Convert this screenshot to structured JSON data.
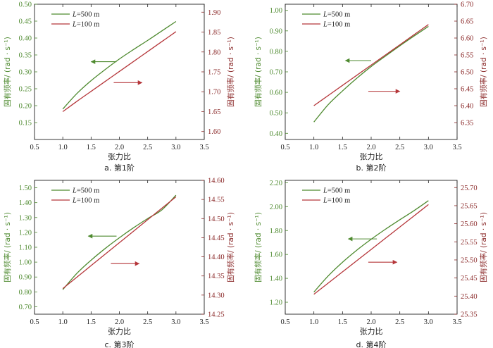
{
  "colors": {
    "green": "#4e8a2f",
    "red": "#b5363a",
    "right_axis": "#8b2a2a",
    "axis": "#222222"
  },
  "chart_data": [
    {
      "type": "line",
      "caption": "a. 第1阶",
      "xlabel": "张力比",
      "ylabel_left": "固有频率/ (rad · s⁻¹)",
      "ylabel_right": "固有频率/ (rad · s⁻¹)",
      "xlim": [
        0.5,
        3.5
      ],
      "xticks": [
        "0.5",
        "1.0",
        "1.5",
        "2.0",
        "2.5",
        "3.0",
        "3.5"
      ],
      "ylim_left": [
        0.1,
        0.5
      ],
      "yticks_left": [
        "0.15",
        "0.20",
        "0.25",
        "0.30",
        "0.35",
        "0.40",
        "0.45",
        "0.50"
      ],
      "ylim_right": [
        1.58,
        1.92
      ],
      "yticks_right": [
        "1.60",
        "1.65",
        "1.70",
        "1.75",
        "1.80",
        "1.85",
        "1.90"
      ],
      "legend": [
        {
          "italic": "L",
          "text": "=500 m"
        },
        {
          "italic": "L",
          "text": "=100 m"
        }
      ],
      "series": [
        {
          "name": "L=500 m",
          "axis": "left",
          "x": [
            1.0,
            1.25,
            1.5,
            1.75,
            2.0,
            2.25,
            2.5,
            2.75,
            3.0
          ],
          "y": [
            0.19,
            0.236,
            0.274,
            0.307,
            0.338,
            0.366,
            0.393,
            0.421,
            0.449
          ]
        },
        {
          "name": "L=100 m",
          "axis": "right",
          "x": [
            1.0,
            1.25,
            1.5,
            1.75,
            2.0,
            2.25,
            2.5,
            2.75,
            3.0
          ],
          "y": [
            1.65,
            1.676,
            1.701,
            1.726,
            1.751,
            1.776,
            1.801,
            1.826,
            1.851
          ]
        }
      ],
      "arrows": [
        {
          "direction": "left",
          "from": [
            1.95,
            0.33
          ],
          "to": [
            1.5,
            0.33
          ]
        },
        {
          "direction": "right",
          "from": [
            1.9,
            0.268
          ],
          "to": [
            2.4,
            0.268
          ]
        }
      ]
    },
    {
      "type": "line",
      "caption": "b. 第2阶",
      "xlabel": "张力比",
      "ylabel_left": "固有频率/ (rad · s⁻¹)",
      "ylabel_right": "固有频率/ (rad · s⁻¹)",
      "xlim": [
        0.5,
        3.5
      ],
      "xticks": [
        "0.5",
        "1.0",
        "1.5",
        "2.0",
        "2.5",
        "3.0",
        "3.5"
      ],
      "ylim_left": [
        0.37,
        1.03
      ],
      "yticks_left": [
        "0.40",
        "0.50",
        "0.60",
        "0.70",
        "0.80",
        "0.90",
        "1.00"
      ],
      "ylim_right": [
        6.3,
        6.7
      ],
      "yticks_right": [
        "6.35",
        "6.40",
        "6.45",
        "6.50",
        "6.55",
        "6.60",
        "6.65",
        "6.70"
      ],
      "legend": [
        {
          "italic": "L",
          "text": "=500 m"
        },
        {
          "italic": "L",
          "text": "=100 m"
        }
      ],
      "series": [
        {
          "name": "L=500 m",
          "axis": "left",
          "x": [
            1.0,
            1.25,
            1.5,
            1.75,
            2.0,
            2.25,
            2.5,
            2.75,
            3.0
          ],
          "y": [
            0.455,
            0.54,
            0.607,
            0.669,
            0.726,
            0.777,
            0.827,
            0.875,
            0.922
          ]
        },
        {
          "name": "L=100 m",
          "axis": "right",
          "x": [
            1.0,
            1.25,
            1.5,
            1.75,
            2.0,
            2.25,
            2.5,
            2.75,
            3.0
          ],
          "y": [
            6.4,
            6.43,
            6.46,
            6.49,
            6.52,
            6.55,
            6.58,
            6.61,
            6.64
          ]
        }
      ],
      "arrows": [
        {
          "direction": "left",
          "from": [
            2.0,
            0.755
          ],
          "to": [
            1.55,
            0.755
          ]
        },
        {
          "direction": "right",
          "from": [
            1.95,
            0.605
          ],
          "to": [
            2.5,
            0.605
          ]
        }
      ]
    },
    {
      "type": "line",
      "caption": "c. 第3阶",
      "xlabel": "张力比",
      "ylabel_left": "固有频率/ (rad · s⁻¹)",
      "ylabel_right": "固有频率/ (rad · s⁻¹)",
      "xlim": [
        0.5,
        3.5
      ],
      "xticks": [
        "0.5",
        "1.0",
        "1.5",
        "2.0",
        "2.5",
        "3.0",
        "3.5"
      ],
      "ylim_left": [
        0.65,
        1.55
      ],
      "yticks_left": [
        "0.70",
        "0.80",
        "0.90",
        "1.00",
        "1.10",
        "1.20",
        "1.30",
        "1.40",
        "1.50"
      ],
      "ylim_right": [
        14.25,
        14.6
      ],
      "yticks_right": [
        "14.25",
        "14.30",
        "14.35",
        "14.40",
        "14.45",
        "14.50",
        "14.55",
        "14.60"
      ],
      "legend": [
        {
          "italic": "L",
          "text": "=500 m"
        },
        {
          "italic": "L",
          "text": "=100 m"
        }
      ],
      "series": [
        {
          "name": "L=500 m",
          "axis": "left",
          "x": [
            1.0,
            1.25,
            1.5,
            1.75,
            2.0,
            2.25,
            2.5,
            2.75,
            3.0
          ],
          "y": [
            0.815,
            0.925,
            1.013,
            1.092,
            1.164,
            1.231,
            1.293,
            1.351,
            1.45
          ]
        },
        {
          "name": "L=100 m",
          "axis": "right",
          "x": [
            1.0,
            1.25,
            1.5,
            1.75,
            2.0,
            2.25,
            2.5,
            2.75,
            3.0
          ],
          "y": [
            14.317,
            14.347,
            14.377,
            14.407,
            14.437,
            14.467,
            14.497,
            14.527,
            14.557
          ]
        }
      ],
      "arrows": [
        {
          "direction": "left",
          "from": [
            1.95,
            1.175
          ],
          "to": [
            1.45,
            1.175
          ]
        },
        {
          "direction": "right",
          "from": [
            1.85,
            0.99
          ],
          "to": [
            2.35,
            0.99
          ]
        }
      ]
    },
    {
      "type": "line",
      "caption": "d. 第4阶",
      "xlabel": "张力比",
      "ylabel_left": "固有频率/ (rad · s⁻¹)",
      "ylabel_right": "固有频率/ (rad · s⁻¹)",
      "xlim": [
        0.5,
        3.5
      ],
      "xticks": [
        "0.5",
        "1.0",
        "1.5",
        "2.0",
        "2.5",
        "3.0",
        "3.5"
      ],
      "ylim_left": [
        1.1,
        2.22
      ],
      "yticks_left": [
        "1.20",
        "1.40",
        "1.60",
        "1.80",
        "2.00",
        "2.20"
      ],
      "ylim_right": [
        25.35,
        25.72
      ],
      "yticks_right": [
        "25.35",
        "25.40",
        "25.45",
        "25.50",
        "25.55",
        "25.60",
        "25.65",
        "25.70"
      ],
      "legend": [
        {
          "italic": "L",
          "text": "=500 m"
        },
        {
          "italic": "L",
          "text": "=100 m"
        }
      ],
      "series": [
        {
          "name": "L=500 m",
          "axis": "left",
          "x": [
            1.0,
            1.25,
            1.5,
            1.75,
            2.0,
            2.25,
            2.5,
            2.75,
            3.0
          ],
          "y": [
            1.285,
            1.42,
            1.535,
            1.636,
            1.727,
            1.811,
            1.89,
            1.967,
            2.05
          ]
        },
        {
          "name": "L=100 m",
          "axis": "right",
          "x": [
            1.0,
            1.25,
            1.5,
            1.75,
            2.0,
            2.25,
            2.5,
            2.75,
            3.0
          ],
          "y": [
            25.405,
            25.436,
            25.467,
            25.498,
            25.529,
            25.56,
            25.591,
            25.622,
            25.653
          ]
        }
      ],
      "arrows": [
        {
          "direction": "left",
          "from": [
            2.1,
            1.73
          ],
          "to": [
            1.6,
            1.73
          ]
        },
        {
          "direction": "right",
          "from": [
            1.95,
            1.535
          ],
          "to": [
            2.45,
            1.535
          ]
        }
      ]
    }
  ]
}
